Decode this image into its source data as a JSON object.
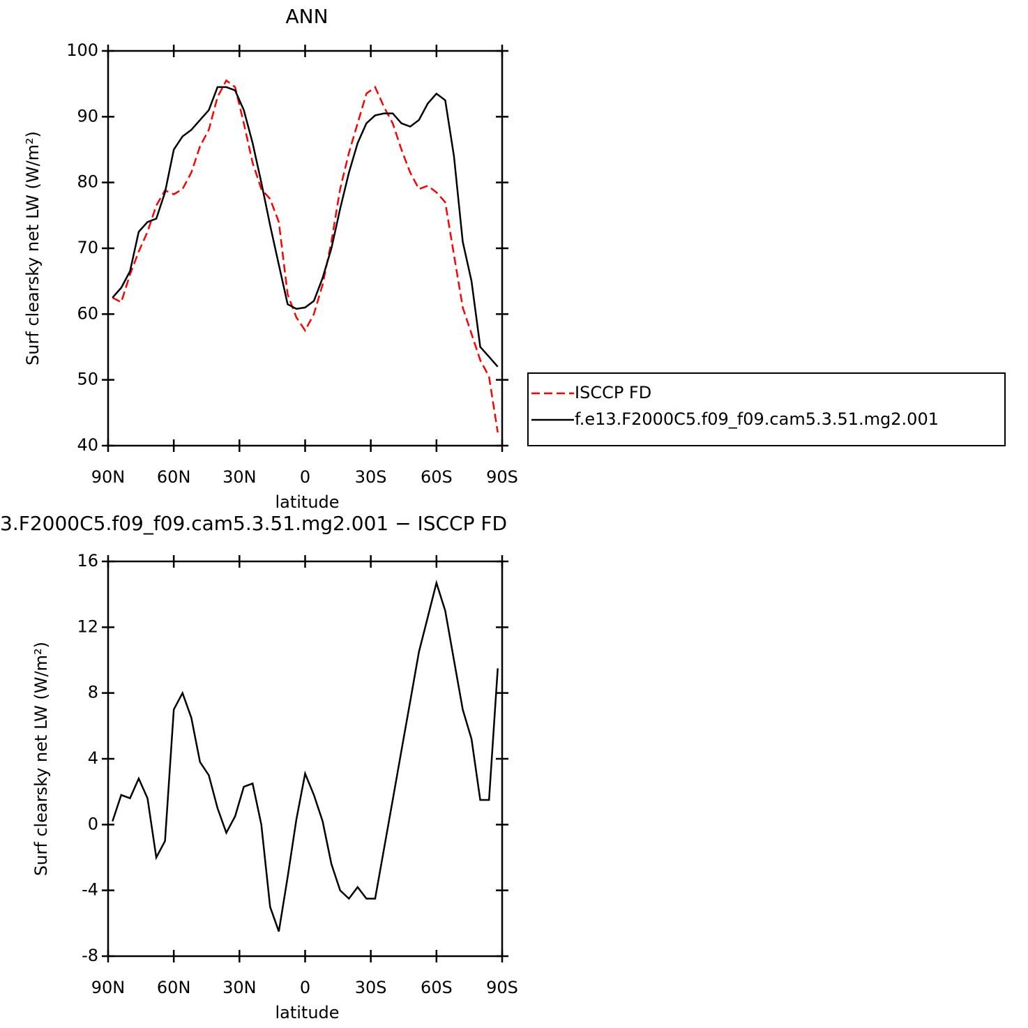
{
  "chart_data": [
    {
      "type": "line",
      "title": "ANN",
      "x_label": "latitude",
      "y_label": "Surf clearsky net LW (W/m²)",
      "x": [
        88,
        84,
        80,
        76,
        72,
        68,
        64,
        60,
        56,
        52,
        48,
        44,
        40,
        36,
        32,
        28,
        24,
        20,
        16,
        12,
        8,
        4,
        0,
        -4,
        -8,
        -12,
        -16,
        -20,
        -24,
        -28,
        -32,
        -36,
        -40,
        -44,
        -48,
        -52,
        -56,
        -60,
        -64,
        -68,
        -72,
        -76,
        -80,
        -84,
        -88
      ],
      "series": [
        {
          "name": "ISCCP FD",
          "color": "#ff0000",
          "dashed": true,
          "values": [
            62.5,
            61.8,
            66,
            69.5,
            72.5,
            76.5,
            78.8,
            78.2,
            79,
            81.5,
            85.5,
            88,
            93,
            95.5,
            94.5,
            89,
            83,
            79,
            77.5,
            74,
            63,
            59.5,
            57.5,
            60,
            64.5,
            71,
            79,
            84.5,
            89,
            93.5,
            94.5,
            91.5,
            89,
            85,
            81.5,
            79,
            79.5,
            78.5,
            77,
            69,
            61,
            57,
            53,
            50.5,
            42
          ]
        },
        {
          "name": "f.e13.F2000C5.f09_f09.cam5.3.51.mg2.001",
          "color": "#000000",
          "dashed": false,
          "values": [
            62.5,
            64,
            66.5,
            72.5,
            74,
            74.5,
            78.5,
            85,
            87,
            88,
            89.5,
            91,
            94.5,
            94.5,
            94,
            91,
            86,
            80,
            73.5,
            67.5,
            61.5,
            60.8,
            61,
            62,
            65.5,
            70,
            76,
            81.5,
            86,
            89,
            90.2,
            90.5,
            90.5,
            89,
            88.5,
            89.5,
            92,
            93.5,
            92.5,
            84,
            71,
            65,
            55,
            53.5,
            52
          ]
        }
      ],
      "xlim": [
        90,
        -90
      ],
      "xticks": [
        {
          "value": 90,
          "label": "90N"
        },
        {
          "value": 60,
          "label": "60N"
        },
        {
          "value": 30,
          "label": "30N"
        },
        0,
        {
          "value": -30,
          "label": "30S"
        },
        {
          "value": -60,
          "label": "60S"
        },
        {
          "value": -90,
          "label": "90S"
        }
      ],
      "ylim": [
        40,
        100
      ],
      "yticks": [
        40,
        50,
        60,
        70,
        80,
        90,
        100
      ],
      "legend": "right"
    },
    {
      "type": "line",
      "title": "3.F2000C5.f09_f09.cam5.3.51.mg2.001 − ISCCP FD",
      "x_label": "latitude",
      "y_label": "Surf clearsky net LW (W/m²)",
      "x": [
        88,
        84,
        80,
        76,
        72,
        68,
        64,
        60,
        56,
        52,
        48,
        44,
        40,
        36,
        32,
        28,
        24,
        20,
        16,
        12,
        8,
        4,
        0,
        -4,
        -8,
        -12,
        -16,
        -20,
        -24,
        -28,
        -32,
        -36,
        -40,
        -44,
        -48,
        -52,
        -56,
        -60,
        -64,
        -68,
        -72,
        -76,
        -80,
        -84,
        -88
      ],
      "values": [
        0.2,
        1.8,
        1.6,
        2.8,
        1.6,
        -2,
        -1,
        7,
        8,
        6.5,
        3.8,
        3,
        1,
        -0.5,
        0.5,
        2.3,
        2.5,
        0,
        -5,
        -6.5,
        -3.2,
        0.3,
        3.1,
        1.8,
        0.2,
        -2.4,
        -4,
        -4.5,
        -3.8,
        -4.5,
        -4.5,
        -1.5,
        1.5,
        4.5,
        7.5,
        10.5,
        12.6,
        14.7,
        13,
        10,
        7,
        5.2,
        1.5,
        1.5,
        9.5
      ],
      "color": "#000000",
      "xlim": [
        90,
        -90
      ],
      "xticks": [
        {
          "value": 90,
          "label": "90N"
        },
        {
          "value": 60,
          "label": "60N"
        },
        {
          "value": 30,
          "label": "30N"
        },
        0,
        {
          "value": -30,
          "label": "30S"
        },
        {
          "value": -60,
          "label": "60S"
        },
        {
          "value": -90,
          "label": "90S"
        }
      ],
      "ylim": [
        -8,
        16
      ],
      "yticks": [
        -8,
        -4,
        0,
        4,
        8,
        12,
        16
      ]
    }
  ]
}
